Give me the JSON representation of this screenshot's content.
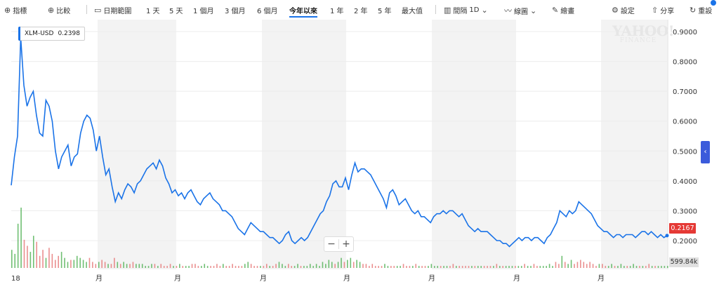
{
  "toolbar": {
    "indicator_label": "指標",
    "compare_label": "比較",
    "date_range_label": "日期範圍",
    "ranges": [
      "1 天",
      "5 天",
      "1 個月",
      "3 個月",
      "6 個月",
      "今年以來",
      "1 年",
      "2 年",
      "5 年",
      "最大值"
    ],
    "active_range": "今年以來",
    "interval_label": "間隔",
    "interval_value": "1D",
    "chart_type_label": "線圖",
    "draw_label": "繪畫",
    "settings_label": "設定",
    "share_label": "分享",
    "reset_label": "重設"
  },
  "legend": {
    "symbol": "XLM-USD",
    "value": "0.2398"
  },
  "watermark": {
    "line1": "YAHOO!",
    "line2": "FINANCE"
  },
  "zoom": {
    "minus": "−",
    "plus": "+"
  },
  "price_tag": "0.2167",
  "volume_tag": "599.84k",
  "colors": {
    "line": "#1a73e8",
    "price_tag": "#e53935",
    "volume_up": "#4caf50",
    "volume_down": "#e57373",
    "shade": "#f3f3f3"
  },
  "chart_data": {
    "type": "line",
    "title": "",
    "xlabel": "",
    "ylabel": "",
    "series": [
      {
        "name": "XLM-USD",
        "values": [
          0.385,
          0.48,
          0.55,
          0.88,
          0.72,
          0.65,
          0.68,
          0.7,
          0.62,
          0.56,
          0.55,
          0.67,
          0.65,
          0.6,
          0.5,
          0.44,
          0.48,
          0.5,
          0.52,
          0.45,
          0.48,
          0.49,
          0.56,
          0.6,
          0.62,
          0.61,
          0.57,
          0.5,
          0.55,
          0.48,
          0.42,
          0.44,
          0.38,
          0.33,
          0.36,
          0.34,
          0.37,
          0.39,
          0.38,
          0.36,
          0.39,
          0.4,
          0.42,
          0.44,
          0.45,
          0.46,
          0.44,
          0.47,
          0.45,
          0.41,
          0.39,
          0.36,
          0.37,
          0.35,
          0.36,
          0.34,
          0.36,
          0.37,
          0.35,
          0.33,
          0.32,
          0.34,
          0.35,
          0.36,
          0.34,
          0.33,
          0.32,
          0.3,
          0.3,
          0.29,
          0.28,
          0.26,
          0.24,
          0.23,
          0.22,
          0.24,
          0.26,
          0.25,
          0.24,
          0.23,
          0.23,
          0.22,
          0.21,
          0.21,
          0.2,
          0.19,
          0.2,
          0.22,
          0.23,
          0.2,
          0.19,
          0.2,
          0.21,
          0.2,
          0.21,
          0.23,
          0.25,
          0.27,
          0.29,
          0.3,
          0.33,
          0.35,
          0.39,
          0.4,
          0.38,
          0.38,
          0.41,
          0.37,
          0.42,
          0.46,
          0.43,
          0.44,
          0.44,
          0.43,
          0.42,
          0.4,
          0.38,
          0.36,
          0.34,
          0.31,
          0.36,
          0.37,
          0.35,
          0.32,
          0.33,
          0.34,
          0.32,
          0.3,
          0.29,
          0.3,
          0.28,
          0.28,
          0.27,
          0.26,
          0.28,
          0.29,
          0.29,
          0.3,
          0.29,
          0.3,
          0.3,
          0.29,
          0.28,
          0.29,
          0.27,
          0.25,
          0.24,
          0.23,
          0.24,
          0.23,
          0.23,
          0.23,
          0.22,
          0.21,
          0.2,
          0.2,
          0.19,
          0.19,
          0.18,
          0.19,
          0.2,
          0.21,
          0.2,
          0.21,
          0.21,
          0.2,
          0.21,
          0.21,
          0.2,
          0.19,
          0.21,
          0.22,
          0.24,
          0.26,
          0.3,
          0.29,
          0.28,
          0.3,
          0.29,
          0.3,
          0.33,
          0.32,
          0.31,
          0.3,
          0.29,
          0.27,
          0.25,
          0.24,
          0.23,
          0.23,
          0.22,
          0.21,
          0.22,
          0.22,
          0.21,
          0.22,
          0.22,
          0.22,
          0.21,
          0.22,
          0.23,
          0.23,
          0.22,
          0.23,
          0.22,
          0.21,
          0.22,
          0.21,
          0.2167
        ]
      }
    ],
    "x_tick_labels": [
      "18",
      "月",
      "月",
      "月",
      "月",
      "月",
      "月",
      "月"
    ],
    "y_ticks": [
      "0.9000",
      "0.8000",
      "0.7000",
      "0.6000",
      "0.5000",
      "0.4000",
      "0.3000",
      "0.2000"
    ],
    "ylim": [
      0.16,
      0.94
    ],
    "grid": true,
    "volume": [
      9,
      7,
      22,
      30,
      14,
      11,
      8,
      16,
      13,
      6,
      9,
      5,
      10,
      7,
      4,
      6,
      8,
      5,
      3,
      4,
      4,
      6,
      5,
      4,
      3,
      5,
      3,
      2,
      3,
      4,
      3,
      2,
      2,
      5,
      3,
      2,
      3,
      2,
      2,
      3,
      2,
      2,
      2,
      1,
      1,
      2,
      2,
      1,
      2,
      1,
      1,
      2,
      1,
      1,
      2,
      1,
      1,
      1,
      2,
      2,
      1,
      1,
      2,
      1,
      1,
      1,
      2,
      1,
      2,
      1,
      1,
      2,
      1,
      1,
      1,
      2,
      3,
      2,
      1,
      1,
      1,
      1,
      2,
      1,
      1,
      2,
      3,
      2,
      1,
      2,
      1,
      1,
      2,
      1,
      1,
      1,
      2,
      1,
      2,
      1,
      3,
      2,
      4,
      3,
      2,
      3,
      5,
      3,
      4,
      5,
      3,
      4,
      3,
      2,
      2,
      1,
      2,
      1,
      1,
      1,
      2,
      1,
      1,
      1,
      1,
      1,
      2,
      1,
      1,
      1,
      2,
      1,
      1,
      1,
      1,
      2,
      1,
      1,
      1,
      1,
      1,
      1,
      2,
      1,
      1,
      1,
      1,
      1,
      1,
      1,
      1,
      1,
      1,
      1,
      1,
      1,
      2,
      1,
      1,
      1,
      1,
      1,
      1,
      1,
      1,
      2,
      1,
      1,
      2,
      1,
      1,
      1,
      1,
      2,
      1,
      3,
      2,
      6,
      3,
      2,
      4,
      2,
      3,
      4,
      3,
      2,
      3,
      2,
      1,
      2,
      2,
      1,
      1,
      2,
      1,
      1,
      2,
      1,
      1,
      1,
      2,
      1,
      1,
      1,
      1,
      2,
      1,
      1,
      1,
      1,
      1,
      1
    ]
  }
}
